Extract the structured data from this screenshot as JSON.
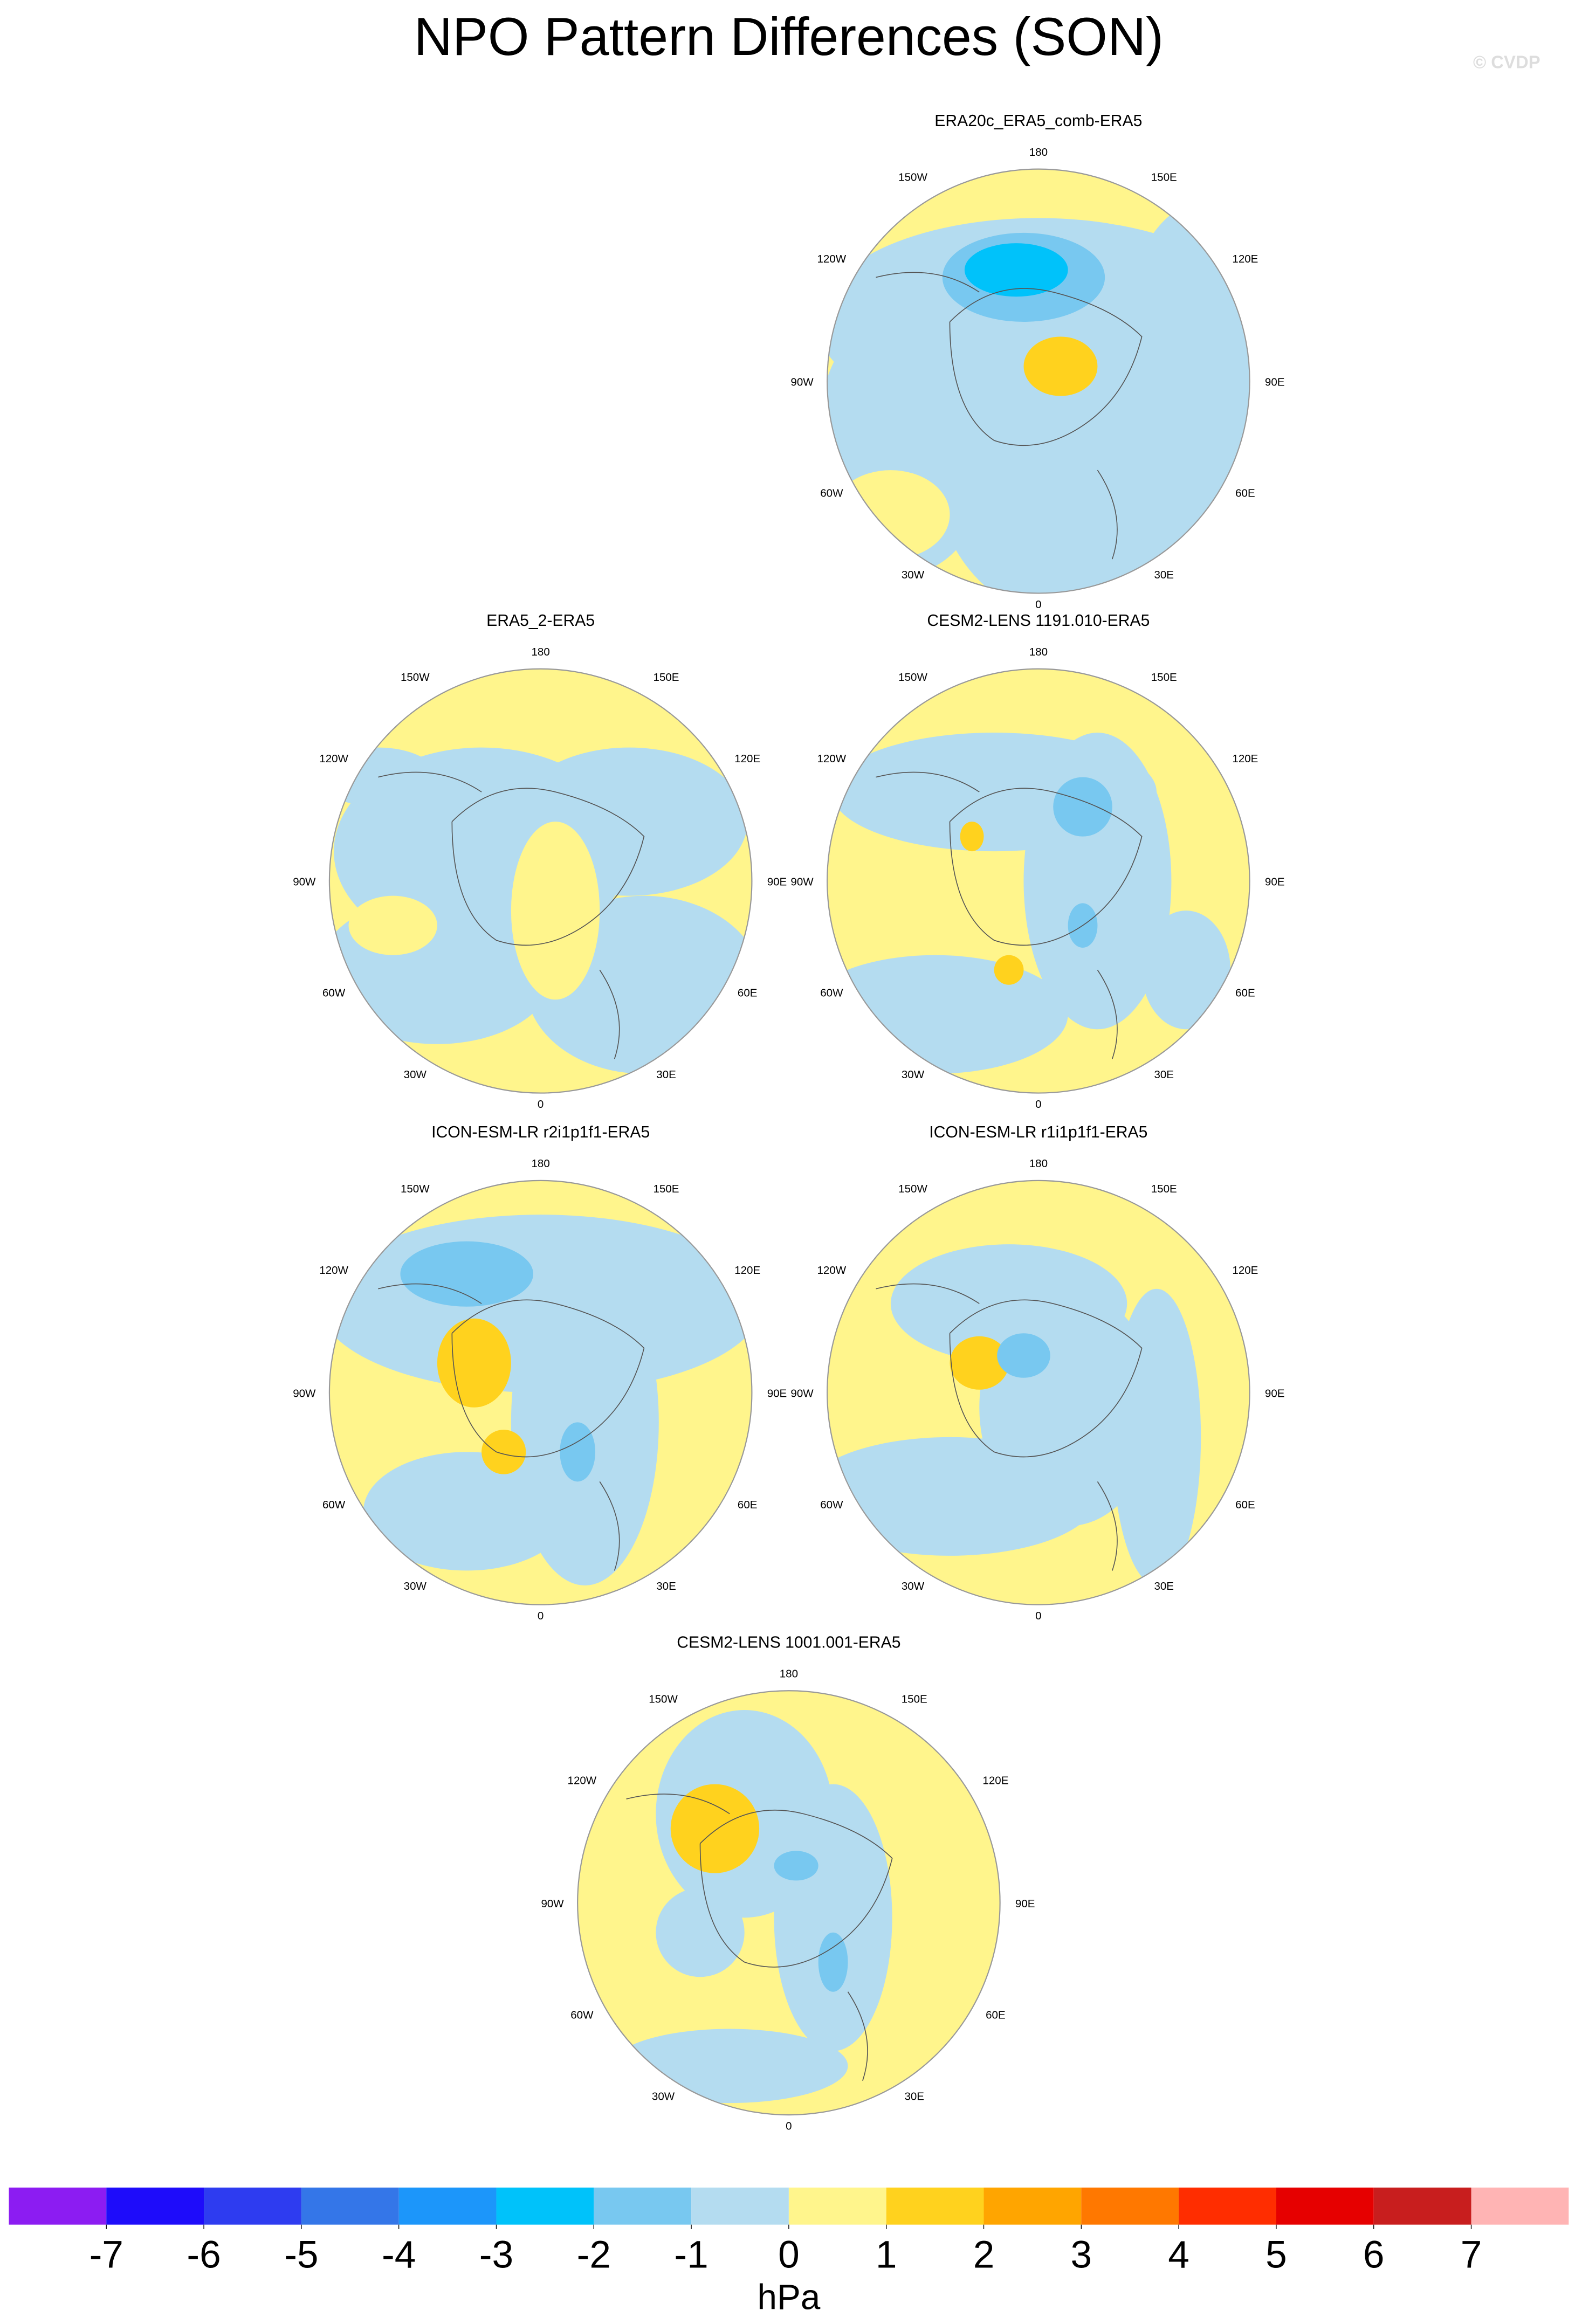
{
  "chart_data": {
    "type": "polar-map-panels",
    "title": "NPO Pattern Differences (SON)",
    "credit": "© CVDP",
    "longitude_labels": [
      "180",
      "150W",
      "150E",
      "120W",
      "120E",
      "90W",
      "90E",
      "60W",
      "60E",
      "30W",
      "30E",
      "0"
    ],
    "panels": [
      {
        "title": "ERA20c_ERA5_comb-ERA5"
      },
      {
        "title": "ERA5_2-ERA5"
      },
      {
        "title": "CESM2-LENS 1191.010-ERA5"
      },
      {
        "title": "ICON-ESM-LR r2i1p1f1-ERA5"
      },
      {
        "title": "ICON-ESM-LR r1i1p1f1-ERA5"
      },
      {
        "title": "CESM2-LENS 1001.001-ERA5"
      }
    ],
    "colorbar": {
      "colors": [
        "#8c1cf2",
        "#1e0cfa",
        "#2e3cf0",
        "#3476e8",
        "#1c96fa",
        "#00c2fa",
        "#78c8f0",
        "#b4dcf0",
        "#fff58c",
        "#ffd21e",
        "#ffa500",
        "#ff7800",
        "#ff2d00",
        "#e60000",
        "#c81e1e",
        "#ffb4b4"
      ],
      "ticks": [
        -7,
        -6,
        -5,
        -4,
        -3,
        -2,
        -1,
        0,
        1,
        2,
        3,
        4,
        5,
        6,
        7
      ],
      "label": "hPa"
    }
  }
}
